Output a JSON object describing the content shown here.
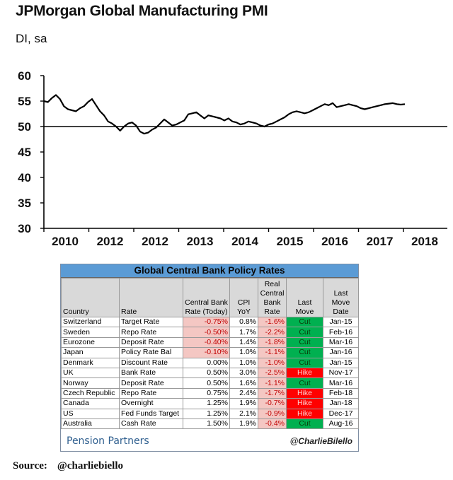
{
  "chart_data": {
    "type": "line",
    "title": "JPMorgan Global Manufacturing PMI",
    "subtitle": "DI, sa",
    "ylim": [
      30,
      60
    ],
    "yticks": [
      60,
      55,
      50,
      45,
      40,
      35,
      30
    ],
    "reference_line": 50,
    "x_tick_labels": [
      "2010",
      "2012",
      "2012",
      "2013",
      "2014",
      "2015",
      "2016",
      "2017",
      "2018"
    ],
    "series": [
      {
        "name": "JPMorgan Global Manufacturing PMI",
        "t": [
          0.0,
          0.01,
          0.02,
          0.03,
          0.04,
          0.05,
          0.06,
          0.07,
          0.08,
          0.09,
          0.1,
          0.11,
          0.12,
          0.13,
          0.14,
          0.15,
          0.16,
          0.17,
          0.18,
          0.19,
          0.2,
          0.21,
          0.22,
          0.23,
          0.24,
          0.25,
          0.26,
          0.27,
          0.28,
          0.29,
          0.3,
          0.31,
          0.32,
          0.33,
          0.34,
          0.35,
          0.36,
          0.37,
          0.38,
          0.39,
          0.4,
          0.41,
          0.42,
          0.43,
          0.44,
          0.45,
          0.46,
          0.47,
          0.48,
          0.49,
          0.5,
          0.51,
          0.52,
          0.53,
          0.54,
          0.55,
          0.56,
          0.57,
          0.58,
          0.59,
          0.6,
          0.61,
          0.62,
          0.63,
          0.64,
          0.65,
          0.66,
          0.67,
          0.68,
          0.69,
          0.7,
          0.71,
          0.72,
          0.73,
          0.74,
          0.75,
          0.76,
          0.77,
          0.78,
          0.79,
          0.8,
          0.81,
          0.82,
          0.83,
          0.84,
          0.85,
          0.86,
          0.87,
          0.88,
          0.89,
          0.9
        ],
        "values": [
          55.0,
          54.8,
          55.6,
          56.2,
          55.4,
          54.0,
          53.4,
          53.2,
          53.0,
          53.6,
          54.0,
          54.8,
          55.4,
          54.2,
          53.0,
          52.2,
          51.0,
          50.6,
          50.0,
          49.2,
          50.0,
          50.6,
          50.8,
          50.2,
          49.0,
          48.6,
          48.8,
          49.4,
          49.8,
          50.6,
          51.4,
          50.8,
          50.2,
          50.4,
          50.8,
          51.2,
          52.4,
          52.6,
          52.8,
          52.2,
          51.6,
          52.2,
          52.0,
          51.8,
          51.6,
          51.2,
          51.6,
          51.0,
          50.8,
          50.4,
          50.6,
          51.0,
          50.8,
          50.6,
          50.2,
          50.0,
          50.4,
          50.6,
          51.0,
          51.4,
          51.8,
          52.4,
          52.8,
          53.0,
          52.8,
          52.6,
          52.8,
          53.2,
          53.6,
          54.0,
          54.4,
          54.2,
          54.6,
          53.8,
          54.0,
          54.2,
          54.4,
          54.2,
          54.0,
          53.6,
          53.4,
          53.6,
          53.8,
          54.0,
          54.2,
          54.4,
          54.5,
          54.6,
          54.4,
          54.3,
          54.4
        ]
      }
    ]
  },
  "table": {
    "title": "Global Central Bank Policy Rates",
    "headers": {
      "country": "Country",
      "rate": "Rate",
      "cb_rate": "Central Bank Rate (Today)",
      "cpi": "CPI YoY",
      "real_rate": "Real Central Bank Rate",
      "last_move": "Last Move",
      "last_move_date": "Last Move Date"
    },
    "rows": [
      {
        "country": "Switzerland",
        "rate": "Target Rate",
        "cb_rate": "-0.75%",
        "cpi": "0.8%",
        "real_rate": "-1.6%",
        "last_move": "Cut",
        "date": "Jan-15"
      },
      {
        "country": "Sweden",
        "rate": "Repo Rate",
        "cb_rate": "-0.50%",
        "cpi": "1.7%",
        "real_rate": "-2.2%",
        "last_move": "Cut",
        "date": "Feb-16"
      },
      {
        "country": "Eurozone",
        "rate": "Deposit Rate",
        "cb_rate": "-0.40%",
        "cpi": "1.4%",
        "real_rate": "-1.8%",
        "last_move": "Cut",
        "date": "Mar-16"
      },
      {
        "country": "Japan",
        "rate": "Policy Rate Bal",
        "cb_rate": "-0.10%",
        "cpi": "1.0%",
        "real_rate": "-1.1%",
        "last_move": "Cut",
        "date": "Jan-16"
      },
      {
        "country": "Denmark",
        "rate": "Discount Rate",
        "cb_rate": "0.00%",
        "cpi": "1.0%",
        "real_rate": "-1.0%",
        "last_move": "Cut",
        "date": "Jan-15"
      },
      {
        "country": "UK",
        "rate": "Bank Rate",
        "cb_rate": "0.50%",
        "cpi": "3.0%",
        "real_rate": "-2.5%",
        "last_move": "Hike",
        "date": "Nov-17"
      },
      {
        "country": "Norway",
        "rate": "Deposit Rate",
        "cb_rate": "0.50%",
        "cpi": "1.6%",
        "real_rate": "-1.1%",
        "last_move": "Cut",
        "date": "Mar-16"
      },
      {
        "country": "Czech Republic",
        "rate": "Repo Rate",
        "cb_rate": "0.75%",
        "cpi": "2.4%",
        "real_rate": "-1.7%",
        "last_move": "Hike",
        "date": "Feb-18"
      },
      {
        "country": "Canada",
        "rate": "Overnight",
        "cb_rate": "1.25%",
        "cpi": "1.9%",
        "real_rate": "-0.7%",
        "last_move": "Hike",
        "date": "Jan-18"
      },
      {
        "country": "US",
        "rate": "Fed Funds Target",
        "cb_rate": "1.25%",
        "cpi": "2.1%",
        "real_rate": "-0.9%",
        "last_move": "Hike",
        "date": "Dec-17"
      },
      {
        "country": "Australia",
        "rate": "Cash Rate",
        "cb_rate": "1.50%",
        "cpi": "1.9%",
        "real_rate": "-0.4%",
        "last_move": "Cut",
        "date": "Aug-16"
      }
    ],
    "brand_left": "Pension Partners",
    "brand_right": "@CharlieBilello"
  },
  "source": {
    "label": "Source:",
    "handle": "@charliebiello"
  },
  "colors": {
    "line": "#000000",
    "header_blue": "#5b9bd5",
    "cut_green": "#00b050",
    "hike_red": "#ff0000",
    "neg_pink": "#f4c7c3"
  }
}
